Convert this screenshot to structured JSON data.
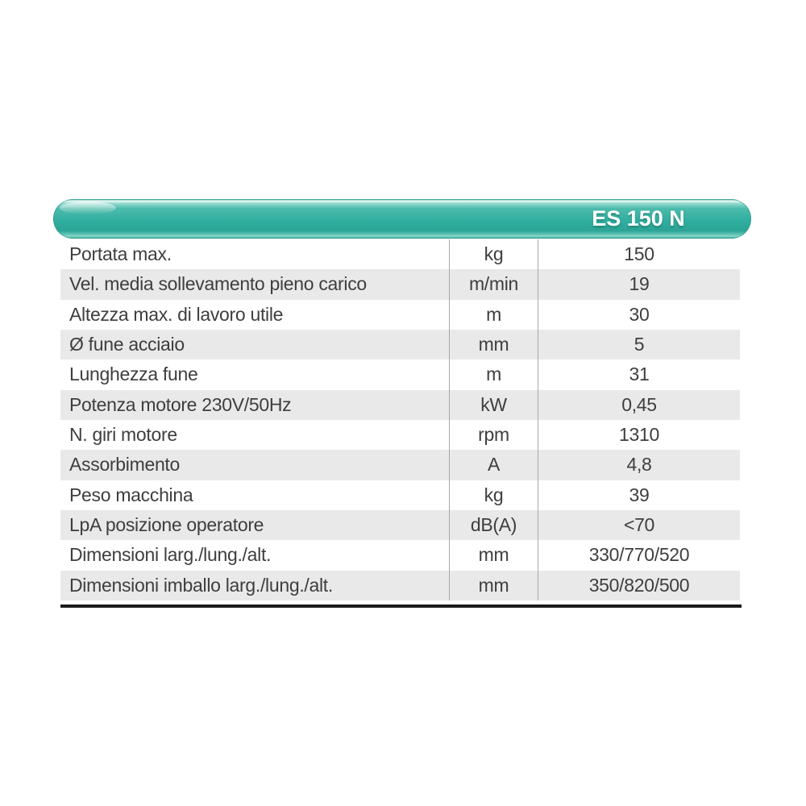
{
  "table": {
    "header": {
      "model_label": "ES 150 N"
    },
    "rows": [
      {
        "label": "Portata max.",
        "unit": "kg",
        "value": "150"
      },
      {
        "label": "Vel. media sollevamento pieno carico",
        "unit": "m/min",
        "value": "19"
      },
      {
        "label": "Altezza max. di lavoro utile",
        "unit": "m",
        "value": "30"
      },
      {
        "label": "Ø fune acciaio",
        "unit": "mm",
        "value": "5"
      },
      {
        "label": "Lunghezza fune",
        "unit": "m",
        "value": "31"
      },
      {
        "label": "Potenza motore 230V/50Hz",
        "unit": "kW",
        "value": "0,45"
      },
      {
        "label": "N. giri motore",
        "unit": "rpm",
        "value": "1310"
      },
      {
        "label": "Assorbimento",
        "unit": "A",
        "value": "4,8"
      },
      {
        "label": "Peso macchina",
        "unit": "kg",
        "value": "39"
      },
      {
        "label": "LpA posizione operatore",
        "unit": "dB(A)",
        "value": "<70"
      },
      {
        "label": "Dimensioni larg./lung./alt.",
        "unit": "mm",
        "value": "330/770/520"
      },
      {
        "label": "Dimensioni imballo larg./lung./alt.",
        "unit": "mm",
        "value": "350/820/500"
      }
    ],
    "colors": {
      "accent_teal": "#2fb0a1",
      "accent_teal_dark": "#1f9b8c",
      "row_alt_gray": "#e9e9e9",
      "divider_gray": "#a8a8a8",
      "bottom_rule_black": "#1b1b1b",
      "text_gray": "#3e3e3e",
      "header_text": "#ffffff"
    }
  }
}
